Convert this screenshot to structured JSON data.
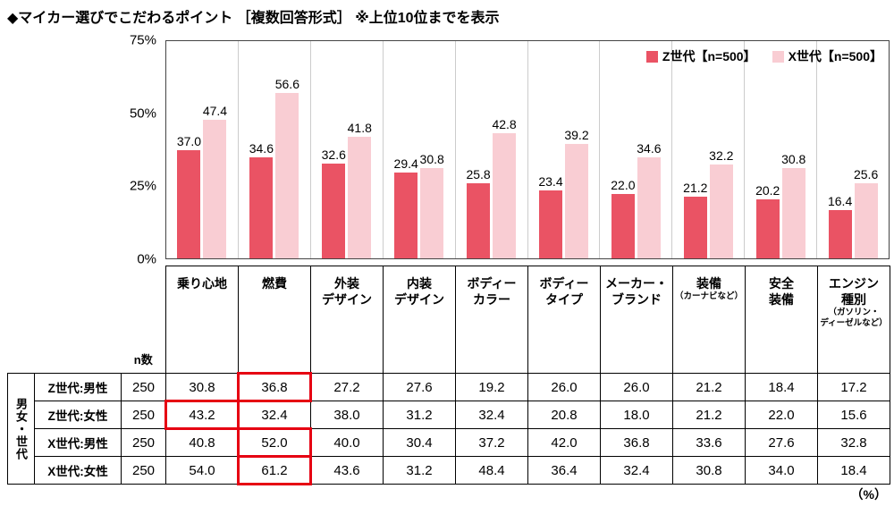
{
  "page": {
    "title": "◆マイカー選びでこだわるポイント ［複数回答形式］ ※上位10位までを表示",
    "percent_note": "（%）"
  },
  "chart_data": {
    "type": "bar",
    "title": "マイカー選びでこだわるポイント ［複数回答形式］ 上位10位",
    "xlabel": "",
    "ylabel": "%",
    "ylim": [
      0,
      75
    ],
    "yticks": [
      "75%",
      "50%",
      "25%",
      "0%"
    ],
    "grid": "vertical-category-separators",
    "legend_position": "top-right",
    "categories": [
      "乗り心地",
      "燃費",
      "外装デザイン",
      "内装デザイン",
      "ボディーカラー",
      "ボディータイプ",
      "メーカー・ブランド",
      "装備（カーナビなど）",
      "安全装備",
      "エンジン種別（ガソリン・ディーゼルなど）"
    ],
    "series": [
      {
        "name": "Z世代【n=500】",
        "color": "#ea5364",
        "values": [
          37.0,
          34.6,
          32.6,
          29.4,
          25.8,
          23.4,
          22.0,
          21.2,
          20.2,
          16.4
        ]
      },
      {
        "name": "X世代【n=500】",
        "color": "#f9cdd3",
        "values": [
          47.4,
          56.6,
          41.8,
          30.8,
          42.8,
          39.2,
          34.6,
          32.2,
          30.8,
          25.6
        ]
      }
    ]
  },
  "table": {
    "row_group_label": "男女・世代",
    "n_label": "n数",
    "highlight_color": "#e60012",
    "column_headers": [
      {
        "lines": [
          "乗り心地"
        ],
        "sub": []
      },
      {
        "lines": [
          "燃費"
        ],
        "sub": []
      },
      {
        "lines": [
          "外装",
          "デザイン"
        ],
        "sub": []
      },
      {
        "lines": [
          "内装",
          "デザイン"
        ],
        "sub": []
      },
      {
        "lines": [
          "ボディー",
          "カラー"
        ],
        "sub": []
      },
      {
        "lines": [
          "ボディー",
          "タイプ"
        ],
        "sub": []
      },
      {
        "lines": [
          "メーカー・",
          "ブランド"
        ],
        "sub": []
      },
      {
        "lines": [
          "装備"
        ],
        "sub": [
          "（カーナビなど）"
        ]
      },
      {
        "lines": [
          "安全",
          "装備"
        ],
        "sub": []
      },
      {
        "lines": [
          "エンジン",
          "種別"
        ],
        "sub": [
          "（ガソリン・",
          "ディーゼルなど）"
        ]
      }
    ],
    "rows": [
      {
        "label": "Z世代:男性",
        "n": "250",
        "values": [
          30.8,
          36.8,
          27.2,
          27.6,
          19.2,
          26.0,
          26.0,
          21.2,
          18.4,
          17.2
        ],
        "highlight": 1
      },
      {
        "label": "Z世代:女性",
        "n": "250",
        "values": [
          43.2,
          32.4,
          38.0,
          31.2,
          32.4,
          20.8,
          18.0,
          21.2,
          22.0,
          15.6
        ],
        "highlight": 0
      },
      {
        "label": "X世代:男性",
        "n": "250",
        "values": [
          40.8,
          52.0,
          40.0,
          30.4,
          37.2,
          42.0,
          36.8,
          33.6,
          27.6,
          32.8
        ],
        "highlight": 1
      },
      {
        "label": "X世代:女性",
        "n": "250",
        "values": [
          54.0,
          61.2,
          43.6,
          31.2,
          48.4,
          36.4,
          32.4,
          30.8,
          34.0,
          18.4
        ],
        "highlight": 1
      }
    ]
  }
}
